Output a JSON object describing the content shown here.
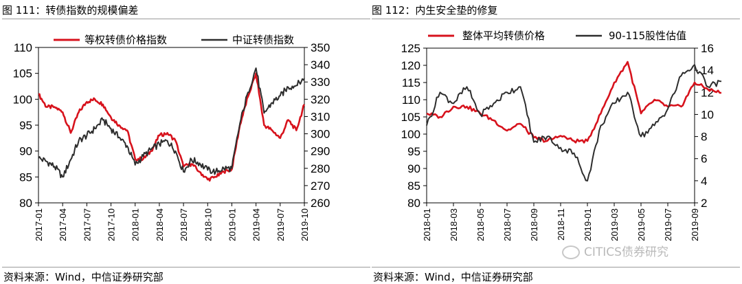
{
  "left": {
    "title": "图 111：转债指数的规模偏差",
    "source": "资料来源：Wind，中信证券研究部"
  },
  "right": {
    "title": "图 112：内生安全垫的修复",
    "source": "资料来源：Wind，中信证券研究部"
  },
  "watermark": "CITICS债券研究",
  "colors": {
    "red": "#d7121c",
    "dark": "#2d2d2d"
  },
  "chart_data": [
    {
      "type": "line",
      "title": "",
      "legend_position": "top",
      "grid": false,
      "y_left": {
        "ylim": [
          80,
          110
        ],
        "ticks": [
          "80",
          "85",
          "90",
          "95",
          "100",
          "105",
          "110"
        ]
      },
      "y_right": {
        "ylim": [
          260,
          350
        ],
        "ticks": [
          "260",
          "270",
          "280",
          "290",
          "300",
          "310",
          "320",
          "330",
          "340",
          "350"
        ]
      },
      "x_ticks": [
        "2017-01",
        "2017-04",
        "2017-07",
        "2017-10",
        "2018-01",
        "2018-04",
        "2018-07",
        "2018-10",
        "2019-01",
        "2019-04",
        "2019-07",
        "2019-10"
      ],
      "series": [
        {
          "name": "等权转债价格指数",
          "axis": "left",
          "color": "#d7121c",
          "x": [
            "2017-01",
            "2017-02",
            "2017-03",
            "2017-04",
            "2017-05",
            "2017-06",
            "2017-07",
            "2017-08",
            "2017-09",
            "2017-10",
            "2017-11",
            "2017-12",
            "2018-01",
            "2018-02",
            "2018-03",
            "2018-04",
            "2018-05",
            "2018-06",
            "2018-07",
            "2018-08",
            "2018-09",
            "2018-10",
            "2018-11",
            "2018-12",
            "2019-01",
            "2019-02",
            "2019-03",
            "2019-04",
            "2019-05",
            "2019-06",
            "2019-07",
            "2019-08",
            "2019-09",
            "2019-10"
          ],
          "values": [
            101,
            98.5,
            98.5,
            97.5,
            93.5,
            97.5,
            99.5,
            100,
            99,
            96.5,
            95,
            94,
            88.5,
            88.5,
            90,
            93,
            93.5,
            92,
            87,
            87.5,
            86,
            84.5,
            85,
            86,
            86.5,
            95,
            100.5,
            105,
            95,
            94,
            92.5,
            96,
            94,
            99
          ]
        },
        {
          "name": "中证转债指数",
          "axis": "right",
          "color": "#2d2d2d",
          "x": [
            "2017-01",
            "2017-02",
            "2017-03",
            "2017-04",
            "2017-05",
            "2017-06",
            "2017-07",
            "2017-08",
            "2017-09",
            "2017-10",
            "2017-11",
            "2017-12",
            "2018-01",
            "2018-02",
            "2018-03",
            "2018-04",
            "2018-05",
            "2018-06",
            "2018-07",
            "2018-08",
            "2018-09",
            "2018-10",
            "2018-11",
            "2018-12",
            "2019-01",
            "2019-02",
            "2019-03",
            "2019-04",
            "2019-05",
            "2019-06",
            "2019-07",
            "2019-08",
            "2019-09",
            "2019-10"
          ],
          "values": [
            286,
            284,
            281,
            275,
            285,
            296,
            299,
            303,
            308,
            303,
            298,
            293,
            282,
            287,
            291,
            294,
            296,
            290,
            278,
            285,
            283,
            279,
            278,
            280,
            280,
            306,
            324,
            338,
            312,
            318,
            322,
            327,
            328,
            332
          ]
        }
      ]
    },
    {
      "type": "line",
      "title": "",
      "legend_position": "top",
      "grid": false,
      "y_left": {
        "ylim": [
          80,
          125
        ],
        "ticks": [
          "80",
          "85",
          "90",
          "95",
          "100",
          "105",
          "110",
          "115",
          "120",
          "125"
        ]
      },
      "y_right": {
        "ylim": [
          2,
          16
        ],
        "ticks": [
          "2",
          "4",
          "6",
          "8",
          "10",
          "12",
          "14",
          "16"
        ]
      },
      "x_ticks": [
        "2018-01",
        "2018-03",
        "2018-05",
        "2018-07",
        "2018-09",
        "2018-11",
        "2019-01",
        "2019-03",
        "2019-05",
        "2019-07",
        "2019-09"
      ],
      "series": [
        {
          "name": "整体平均转债价格",
          "axis": "left",
          "color": "#d7121c",
          "x": [
            "2018-01",
            "2018-02",
            "2018-03",
            "2018-04",
            "2018-05",
            "2018-06",
            "2018-07",
            "2018-08",
            "2018-09",
            "2018-10",
            "2018-11",
            "2018-12",
            "2019-01",
            "2019-02",
            "2019-03",
            "2019-04",
            "2019-05",
            "2019-06",
            "2019-07",
            "2019-08",
            "2019-09",
            "2019-10",
            "2019-11"
          ],
          "values": [
            106,
            105,
            108,
            108,
            106,
            104,
            101,
            103,
            99,
            98,
            99.5,
            98,
            98,
            106,
            115,
            121,
            106,
            110,
            108,
            108,
            115,
            113,
            112
          ]
        },
        {
          "name": "90-115股性估值",
          "axis": "right",
          "color": "#2d2d2d",
          "x": [
            "2018-01",
            "2018-02",
            "2018-03",
            "2018-04",
            "2018-05",
            "2018-06",
            "2018-07",
            "2018-08",
            "2018-09",
            "2018-10",
            "2018-11",
            "2018-12",
            "2019-01",
            "2019-02",
            "2019-03",
            "2019-04",
            "2019-05",
            "2019-06",
            "2019-07",
            "2019-08",
            "2019-09",
            "2019-10",
            "2019-11"
          ],
          "values": [
            9,
            12,
            11,
            12.5,
            10,
            11,
            12,
            12.5,
            7.5,
            8,
            7,
            6.5,
            4,
            9,
            11,
            12,
            8,
            9,
            10.5,
            13.5,
            14.5,
            12.5,
            13
          ]
        }
      ]
    }
  ]
}
